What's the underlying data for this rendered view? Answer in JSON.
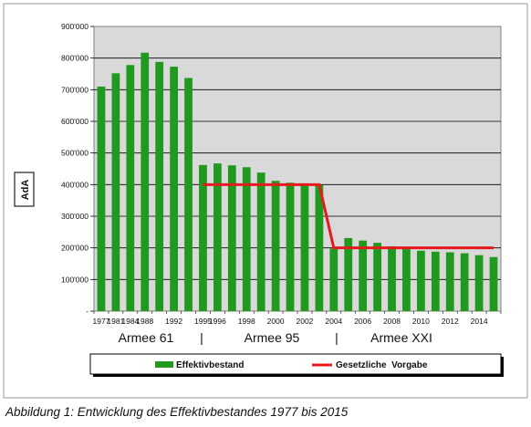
{
  "chart_data": {
    "type": "bar",
    "ylabel": "AdA",
    "ylim": [
      0,
      900000
    ],
    "y_ticks": [
      "-",
      "100'000",
      "200'000",
      "300'000",
      "400'000",
      "500'000",
      "600'000",
      "700'000",
      "800'000",
      "900'000"
    ],
    "y_tick_values": [
      0,
      100000,
      200000,
      300000,
      400000,
      500000,
      600000,
      700000,
      800000,
      900000
    ],
    "grid": "horizontal",
    "x_tick_labels": [
      "1977",
      "1981",
      "1984",
      "1988",
      "1992",
      "1995",
      "1996",
      "1998",
      "2000",
      "2002",
      "2004",
      "2006",
      "2008",
      "2010",
      "2012",
      "2014"
    ],
    "x_tick_bar_index": [
      0,
      1,
      2,
      3,
      5,
      7,
      8,
      10,
      12,
      14,
      16,
      18,
      20,
      22,
      24,
      26
    ],
    "series": [
      {
        "name": "Effektivbestand",
        "type": "bar",
        "color": "#1f9a1f",
        "values": [
          710000,
          752000,
          778000,
          817000,
          788000,
          773000,
          737000,
          462000,
          467000,
          461000,
          455000,
          438000,
          412000,
          406000,
          403000,
          398000,
          198000,
          231000,
          223000,
          216000,
          205000,
          196000,
          191000,
          188000,
          186000,
          183000,
          177000,
          171000
        ]
      },
      {
        "name": "Gesetzliche  Vorgabe",
        "type": "line",
        "color": "#e41a1c",
        "segments": [
          {
            "from_bar": 7,
            "to_bar": 15,
            "value": 400000
          },
          {
            "from_bar": 15,
            "to_bar": 16,
            "value_from": 400000,
            "value_to": 200000
          },
          {
            "from_bar": 16,
            "to_bar": 27,
            "value": 200000
          }
        ]
      }
    ],
    "periods": [
      "Armee 61",
      "Armee 95",
      "Armee XXI"
    ],
    "period_separator": "|",
    "legend_position": "bottom",
    "colors": {
      "plot_bg": "#d9d9d9",
      "bar": "#1f9a1f",
      "line": "#e41a1c"
    }
  },
  "caption": "Abbildung 1: Entwicklung des Effektivbestandes 1977 bis 2015"
}
